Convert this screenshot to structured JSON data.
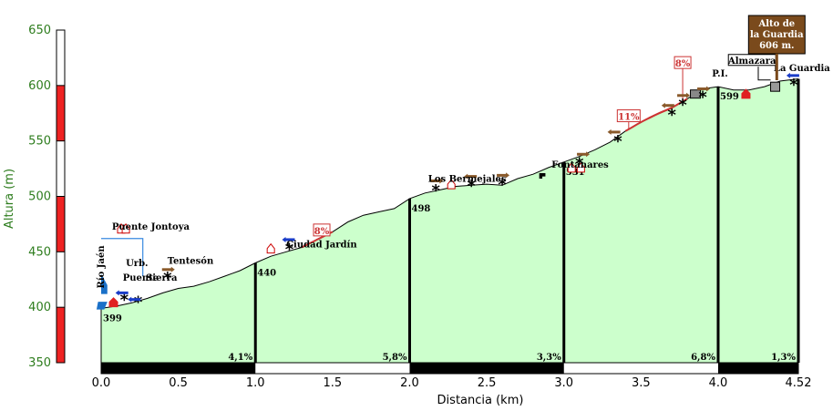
{
  "chart_data": {
    "type": "area",
    "ylabel": "Altura (m)",
    "xlabel": "Distancia (km)",
    "ylim": [
      350,
      650
    ],
    "xlim": [
      0,
      4.52
    ],
    "y_ticks": [
      350,
      400,
      450,
      500,
      550,
      600,
      650
    ],
    "x_ticks": [
      "0.0",
      "0.5",
      "1.0",
      "1.5",
      "2.0",
      "2.5",
      "3.0",
      "3.5",
      "4.0",
      "4.52"
    ],
    "profile": {
      "x": [
        0.0,
        0.1,
        0.2,
        0.3,
        0.4,
        0.5,
        0.6,
        0.7,
        0.8,
        0.9,
        1.0,
        1.1,
        1.2,
        1.3,
        1.4,
        1.5,
        1.6,
        1.7,
        1.8,
        1.9,
        2.0,
        2.1,
        2.2,
        2.3,
        2.4,
        2.5,
        2.6,
        2.7,
        2.8,
        2.9,
        3.0,
        3.1,
        3.2,
        3.3,
        3.4,
        3.5,
        3.6,
        3.7,
        3.8,
        3.9,
        4.0,
        4.1,
        4.2,
        4.3,
        4.4,
        4.52
      ],
      "y": [
        399,
        401,
        404,
        408,
        413,
        417,
        419,
        423,
        428,
        433,
        440,
        446,
        450,
        454,
        461,
        468,
        477,
        483,
        486,
        489,
        498,
        503,
        506,
        509,
        510,
        511,
        510,
        516,
        520,
        526,
        531,
        536,
        542,
        549,
        559,
        567,
        574,
        580,
        588,
        597,
        599,
        596,
        596,
        599,
        604,
        606
      ]
    },
    "km_markers": [
      {
        "x": 0.0,
        "elev": "399"
      },
      {
        "x": 1.0,
        "elev": "440"
      },
      {
        "x": 2.0,
        "elev": "498"
      },
      {
        "x": 3.0,
        "elev": "531"
      },
      {
        "x": 4.0,
        "elev": "599"
      }
    ],
    "segment_slopes": [
      {
        "x_end": 1.0,
        "label": "4,1%"
      },
      {
        "x_end": 2.0,
        "label": "5,8%"
      },
      {
        "x_end": 3.0,
        "label": "3,3%"
      },
      {
        "x_end": 4.0,
        "label": "6,8%"
      },
      {
        "x_end": 4.52,
        "label": "1,3%"
      }
    ],
    "steep_ramps": [
      {
        "x_start": 1.3,
        "x_end": 1.5,
        "label": "8%",
        "label_x": 1.43,
        "label_y": 466
      },
      {
        "x_start": 3.4,
        "x_end": 3.7,
        "label": "11%",
        "label_x": 3.42,
        "label_y": 569
      },
      {
        "x_start": 3.55,
        "x_end": 3.8,
        "label": "8%",
        "label_x": 3.77,
        "label_y": 617
      }
    ],
    "place_labels": [
      {
        "text": "Puente Jontoya",
        "x": 0.07,
        "y": 470
      },
      {
        "text": "Urb.",
        "x": 0.16,
        "y": 437
      },
      {
        "text": "Tentesón",
        "x": 0.43,
        "y": 439
      },
      {
        "text": "Puente",
        "x": 0.14,
        "y": 424
      },
      {
        "text": "Sierra",
        "x": 0.29,
        "y": 424
      },
      {
        "text": "Ciudad Jardín",
        "x": 1.2,
        "y": 454
      },
      {
        "text": "Los Bermejales",
        "x": 2.12,
        "y": 513
      },
      {
        "text": "Fontanares",
        "x": 2.92,
        "y": 526
      },
      {
        "text": "P.I.",
        "x": 3.96,
        "y": 608
      },
      {
        "text": "La Guardia",
        "x": 4.36,
        "y": 613
      }
    ],
    "rio_label": "Río Jaén",
    "almazara_label": "Almazara",
    "summit_box": {
      "lines": [
        "Alto de",
        "la Guardia",
        "606 m."
      ],
      "x": 4.38
    },
    "colors": {
      "fill": "#ccffcc",
      "outline": "#000000",
      "ramp": "#cc3333",
      "axis_text": "#2e7d1e",
      "scale_red": "#ee2222",
      "summit_box": "#7a4a1c"
    }
  }
}
